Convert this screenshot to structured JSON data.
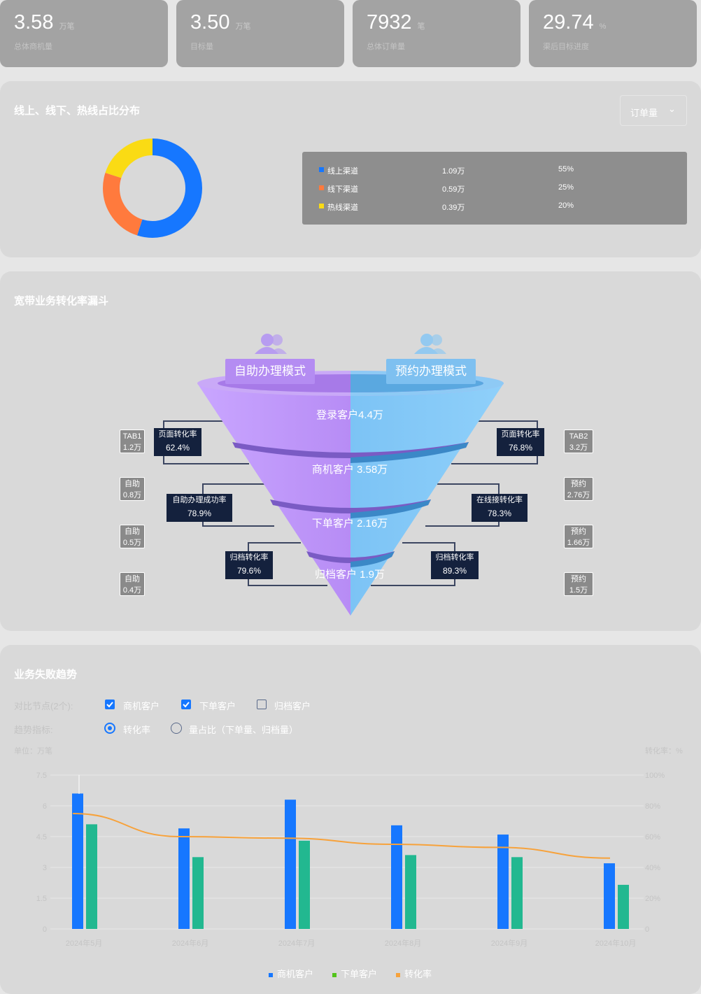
{
  "kpis": [
    {
      "value": "3.58",
      "unit": "万笔",
      "label": "总体商机量"
    },
    {
      "value": "3.50",
      "unit": "万笔",
      "label": "目标量"
    },
    {
      "value": "7932",
      "unit": "笔",
      "label": "总体订单量"
    },
    {
      "value": "29.74",
      "unit": "%",
      "label": "渠后目标进度"
    }
  ],
  "channel": {
    "title": "线上、线下、热线占比分布",
    "dropdown": "订单量",
    "items": [
      {
        "name": "线上渠道",
        "value": "1.09万",
        "pct": "55%",
        "share": 55,
        "color": "#1677ff"
      },
      {
        "name": "线下渠道",
        "value": "0.59万",
        "pct": "25%",
        "share": 25,
        "color": "#ff7a3d"
      },
      {
        "name": "热线渠道",
        "value": "0.39万",
        "pct": "20%",
        "share": 20,
        "color": "#fadb14"
      }
    ]
  },
  "funnel": {
    "title": "宽带业务转化率漏斗",
    "mode_left": "自助办理模式",
    "mode_right": "预约办理模式",
    "stages": [
      "登录客户4.4万",
      "商机客户 3.58万",
      "下单客户 2.16万",
      "归档客户 1.9万"
    ],
    "left_boxes": [
      [
        "TAB1",
        "1.2万"
      ],
      [
        "自助",
        "0.8万"
      ],
      [
        "自助",
        "0.5万"
      ],
      [
        "自助",
        "0.4万"
      ]
    ],
    "right_boxes": [
      [
        "TAB2",
        "3.2万"
      ],
      [
        "预约",
        "2.76万"
      ],
      [
        "预约",
        "1.66万"
      ],
      [
        "预约",
        "1.5万"
      ]
    ],
    "left_rates": [
      [
        "页面转化率",
        "62.4%"
      ],
      [
        "自助办理成功率",
        "78.9%"
      ],
      [
        "归档转化率",
        "79.6%"
      ]
    ],
    "right_rates": [
      [
        "页面转化率",
        "76.8%"
      ],
      [
        "在线接转化率",
        "78.3%"
      ],
      [
        "归档转化率",
        "89.3%"
      ]
    ]
  },
  "trend": {
    "title": "业务失败趋势",
    "compare_label": "对比节点(2个):",
    "compare_options": [
      {
        "label": "商机客户",
        "checked": true
      },
      {
        "label": "下单客户",
        "checked": true
      },
      {
        "label": "归档客户",
        "checked": false
      }
    ],
    "metric_label": "趋势指标:",
    "metric_options": [
      {
        "label": "转化率",
        "selected": true
      },
      {
        "label": "量占比（下单量、归档量）",
        "selected": false
      }
    ],
    "left_unit": "单位：万笔",
    "right_unit": "转化率：%"
  },
  "chart_data": {
    "type": "bar",
    "categories": [
      "2024年5月",
      "2024年6月",
      "2024年7月",
      "2024年8月",
      "2024年9月",
      "2024年10月"
    ],
    "series": [
      {
        "name": "商机客户",
        "type": "bar",
        "color": "#1677ff",
        "values": [
          6.6,
          4.9,
          6.3,
          5.05,
          4.6,
          3.2
        ]
      },
      {
        "name": "下单客户",
        "type": "bar",
        "color": "#22b890",
        "values": [
          5.1,
          3.5,
          4.3,
          3.6,
          3.5,
          2.15
        ]
      },
      {
        "name": "转化率",
        "type": "line",
        "axis": "right",
        "color": "#f7a23b",
        "values": [
          75,
          60,
          59,
          55,
          53,
          46
        ]
      }
    ],
    "y_left_ticks": [
      "0",
      "1.5",
      "3",
      "4.5",
      "6",
      "7.5"
    ],
    "y_left_range": [
      0,
      7.5
    ],
    "y_right_ticks": [
      "0",
      "20%",
      "40%",
      "60%",
      "80%",
      "100%"
    ],
    "y_right_range": [
      0,
      100
    ],
    "legend_position": "bottom",
    "grid": true
  }
}
